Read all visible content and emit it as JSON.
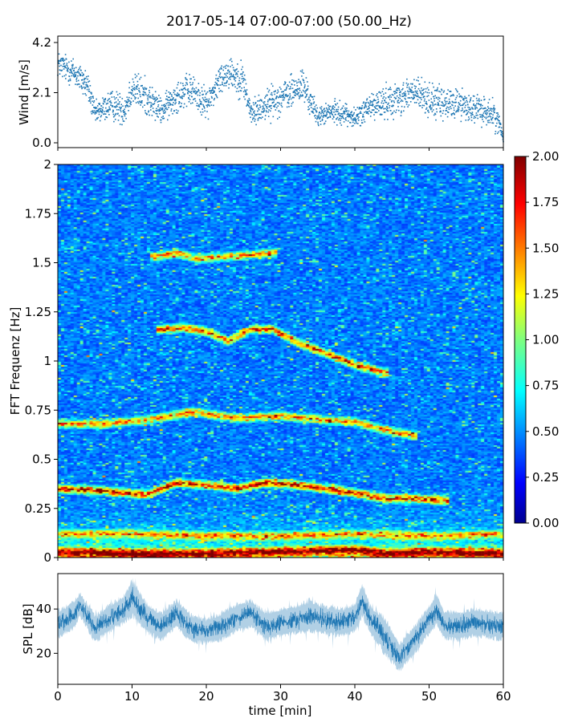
{
  "title": "2017-05-14 07:00-07:00 (50.00_Hz)",
  "chart_data": [
    {
      "type": "scatter",
      "panel": "wind",
      "ylabel": "Wind [m/s]",
      "xlim": [
        0,
        60
      ],
      "ylim": [
        0,
        4.2
      ],
      "yticks": [
        "0.0",
        "2.1",
        "4.2"
      ],
      "color": "#1f77b4",
      "envelope": {
        "x": [
          0,
          2,
          4,
          5,
          7,
          9,
          10,
          12,
          14,
          16,
          18,
          20,
          22,
          23,
          25,
          26,
          28,
          30,
          32,
          33,
          35,
          37,
          39,
          40,
          42,
          44,
          46,
          48,
          50,
          52,
          54,
          56,
          58,
          59,
          60
        ],
        "center": [
          3.3,
          3.0,
          2.4,
          1.2,
          1.6,
          1.4,
          2.3,
          1.9,
          1.3,
          2.0,
          2.2,
          1.6,
          2.7,
          3.0,
          2.6,
          1.2,
          1.6,
          1.9,
          2.2,
          2.4,
          1.1,
          1.3,
          1.2,
          1.0,
          1.5,
          1.7,
          1.9,
          2.1,
          1.8,
          1.6,
          1.7,
          1.4,
          1.3,
          1.1,
          0.3
        ],
        "spread": [
          0.7,
          0.8,
          0.9,
          0.6,
          0.8,
          0.9,
          1.0,
          1.0,
          0.7,
          0.9,
          0.9,
          0.8,
          0.9,
          0.9,
          1.0,
          0.7,
          0.9,
          0.9,
          0.9,
          1.0,
          0.5,
          0.6,
          0.6,
          0.5,
          0.8,
          0.9,
          0.9,
          1.0,
          0.9,
          0.9,
          0.9,
          0.8,
          0.8,
          0.8,
          0.3
        ]
      }
    },
    {
      "type": "heatmap",
      "panel": "spectrogram",
      "ylabel": "FFT Frequenz [Hz]",
      "xlim": [
        0,
        60
      ],
      "ylim": [
        0,
        2
      ],
      "yticks": [
        "0",
        "0.25",
        "0.5",
        "0.75",
        "1",
        "1.25",
        "1.5",
        "1.75",
        "2"
      ],
      "colorbar": {
        "colormap": "jet",
        "range": [
          0,
          2
        ],
        "ticks": [
          "0.00",
          "0.25",
          "0.50",
          "0.75",
          "1.00",
          "1.25",
          "1.50",
          "1.75",
          "2.00"
        ]
      },
      "ridges": [
        {
          "x": [
            0,
            6,
            12,
            16,
            20,
            24,
            28,
            32,
            36,
            40,
            44,
            48,
            52
          ],
          "f": [
            0.35,
            0.34,
            0.32,
            0.38,
            0.37,
            0.35,
            0.38,
            0.37,
            0.35,
            0.33,
            0.3,
            0.3,
            0.29
          ],
          "amp": 1.5
        },
        {
          "x": [
            0,
            6,
            12,
            18,
            24,
            30,
            36,
            40,
            44,
            48
          ],
          "f": [
            0.68,
            0.68,
            0.7,
            0.74,
            0.71,
            0.72,
            0.7,
            0.69,
            0.65,
            0.62
          ],
          "amp": 1.2
        },
        {
          "x": [
            14,
            17,
            20,
            23,
            26,
            29,
            32,
            36,
            40,
            44
          ],
          "f": [
            1.16,
            1.17,
            1.15,
            1.1,
            1.16,
            1.16,
            1.1,
            1.04,
            0.98,
            0.94
          ],
          "amp": 1.4
        },
        {
          "x": [
            13,
            16,
            19,
            26,
            29
          ],
          "f": [
            1.53,
            1.55,
            1.52,
            1.54,
            1.55
          ],
          "amp": 1.2
        },
        {
          "x": [
            0,
            10,
            20,
            30,
            40,
            50,
            60
          ],
          "f": [
            0.12,
            0.12,
            0.11,
            0.11,
            0.12,
            0.11,
            0.12
          ],
          "amp": 1.0
        },
        {
          "x": [
            0,
            10,
            20,
            30,
            40,
            44,
            50,
            60
          ],
          "f": [
            0.03,
            0.02,
            0.02,
            0.03,
            0.04,
            0.02,
            0.03,
            0.02
          ],
          "amp": 1.5
        }
      ]
    },
    {
      "type": "line",
      "panel": "spl",
      "ylabel": "SPL [dB]",
      "xlabel": "time [min]",
      "xlim": [
        0,
        60
      ],
      "ylim": [
        6,
        56
      ],
      "xticks": [
        "0",
        "10",
        "20",
        "30",
        "40",
        "50",
        "60"
      ],
      "yticks": [
        "20",
        "40"
      ],
      "color": "#1f77b4",
      "envelope": {
        "x": [
          0,
          2,
          3,
          5,
          7,
          9,
          10,
          12,
          14,
          16,
          18,
          20,
          22,
          24,
          26,
          28,
          30,
          32,
          34,
          36,
          38,
          40,
          41,
          42,
          44,
          45,
          46,
          47,
          48,
          50,
          51,
          52,
          54,
          56,
          58,
          60
        ],
        "center": [
          33,
          37,
          42,
          31,
          36,
          40,
          45,
          36,
          32,
          38,
          31,
          30,
          32,
          36,
          38,
          32,
          34,
          35,
          37,
          35,
          34,
          36,
          44,
          36,
          28,
          23,
          18,
          22,
          26,
          35,
          40,
          33,
          32,
          34,
          33,
          32
        ],
        "spread": [
          6,
          6,
          5,
          6,
          6,
          6,
          8,
          6,
          6,
          6,
          6,
          5,
          6,
          6,
          6,
          6,
          6,
          6,
          7,
          6,
          6,
          6,
          7,
          6,
          8,
          7,
          6,
          6,
          6,
          6,
          7,
          6,
          6,
          6,
          6,
          6
        ]
      }
    }
  ]
}
